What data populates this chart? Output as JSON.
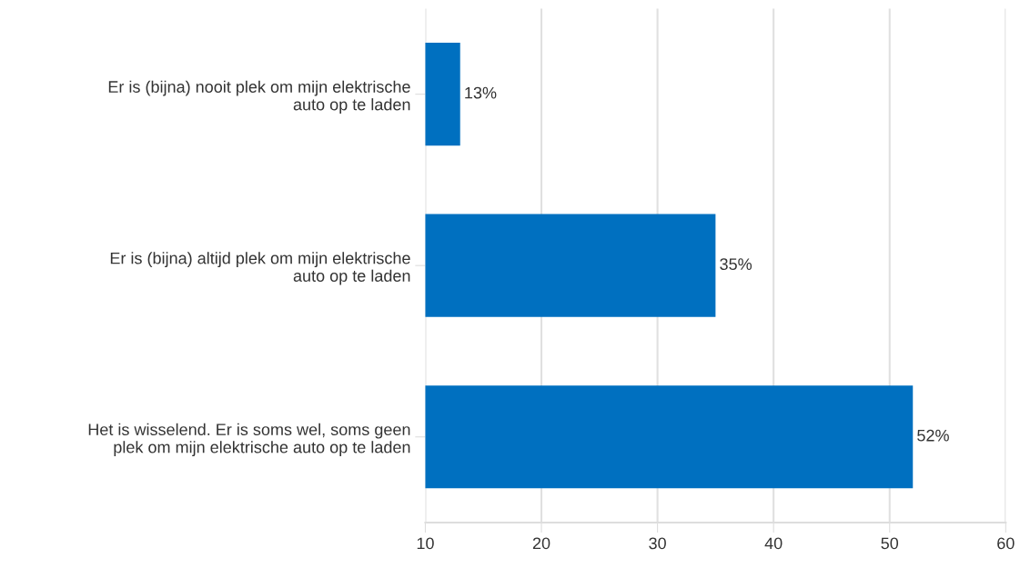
{
  "chart_data": {
    "type": "bar",
    "orientation": "horizontal",
    "categories": [
      "Er is (bijna) nooit plek om mijn elektrische\nauto op te laden",
      "Er is (bijna) altijd plek om mijn elektrische\nauto op te laden",
      "Het is wisselend. Er is soms wel, soms geen\nplek om mijn elektrische auto op te laden"
    ],
    "values": [
      13,
      35,
      52
    ],
    "value_labels": [
      "13%",
      "35%",
      "52%"
    ],
    "color": "#0070c0",
    "xlim": [
      10,
      60
    ],
    "xticks": [
      10,
      20,
      30,
      40,
      50,
      60
    ],
    "grid": "x",
    "legend": false
  }
}
